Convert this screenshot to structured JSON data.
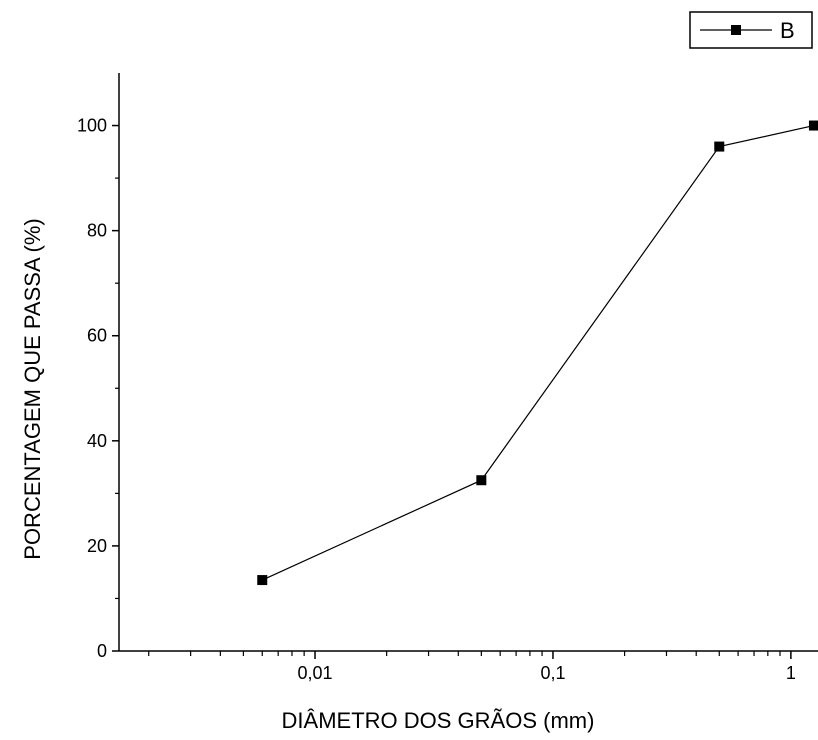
{
  "chart_data": {
    "type": "line",
    "xscale": "log",
    "xlabel": "DIÂMETRO DOS GRÃOS (mm)",
    "ylabel": "PORCENTAGEM QUE PASSA (%)",
    "xlim": [
      0.0015,
      1.3
    ],
    "ylim": [
      0,
      110
    ],
    "x_ticks": [
      {
        "value": 0.01,
        "label": "0,01"
      },
      {
        "value": 0.1,
        "label": "0,1"
      },
      {
        "value": 1,
        "label": "1"
      }
    ],
    "y_ticks": [
      {
        "value": 0,
        "label": "0"
      },
      {
        "value": 20,
        "label": "20"
      },
      {
        "value": 40,
        "label": "40"
      },
      {
        "value": 60,
        "label": "60"
      },
      {
        "value": 80,
        "label": "80"
      },
      {
        "value": 100,
        "label": "100"
      }
    ],
    "series": [
      {
        "name": "B",
        "color": "#000000",
        "marker": "square",
        "x": [
          0.006,
          0.05,
          0.5,
          1.25
        ],
        "y": [
          13.5,
          32.5,
          96,
          100
        ]
      }
    ],
    "legend": {
      "position": "top-right",
      "entries": [
        "B"
      ]
    },
    "grid": false
  }
}
